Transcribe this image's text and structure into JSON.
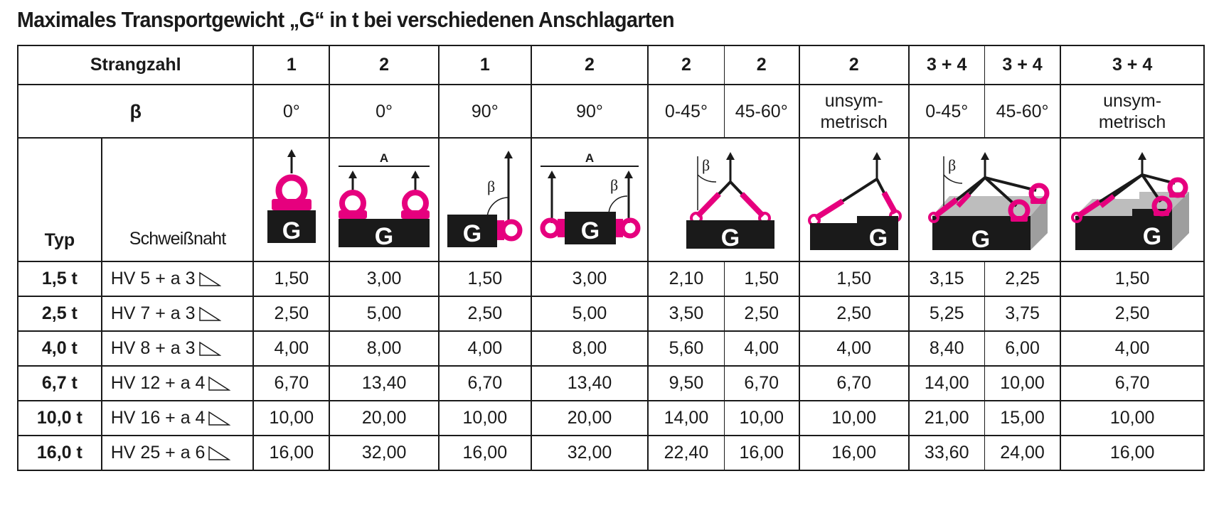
{
  "title": "Maximales Transportgewicht „G“ in t bei verschiedenen Anschlagarten",
  "labels": {
    "strangzahl": "Strangzahl",
    "beta": "β",
    "typ": "Typ",
    "schweissnaht": "Schweißnaht"
  },
  "illustration_text": {
    "load": "G",
    "distance": "A",
    "angle": "β"
  },
  "strangzahl": [
    "1",
    "2",
    "1",
    "2",
    "2",
    "2",
    "2",
    "3 + 4",
    "3 + 4",
    "3 + 4"
  ],
  "beta": [
    "0°",
    "0°",
    "90°",
    "90°",
    "0-45°",
    "45-60°",
    "unsym-\nmetrisch",
    "0-45°",
    "45-60°",
    "unsym-\nmetrisch"
  ],
  "rows": [
    {
      "typ": "1,5 t",
      "weld": "HV 5 + a 3",
      "values": [
        "1,50",
        "3,00",
        "1,50",
        "3,00",
        "2,10",
        "1,50",
        "1,50",
        "3,15",
        "2,25",
        "1,50"
      ]
    },
    {
      "typ": "2,5 t",
      "weld": "HV 7 + a 3",
      "values": [
        "2,50",
        "5,00",
        "2,50",
        "5,00",
        "3,50",
        "2,50",
        "2,50",
        "5,25",
        "3,75",
        "2,50"
      ]
    },
    {
      "typ": "4,0 t",
      "weld": "HV 8 + a 3",
      "values": [
        "4,00",
        "8,00",
        "4,00",
        "8,00",
        "5,60",
        "4,00",
        "4,00",
        "8,40",
        "6,00",
        "4,00"
      ]
    },
    {
      "typ": "6,7 t",
      "weld": "HV 12 + a 4",
      "values": [
        "6,70",
        "13,40",
        "6,70",
        "13,40",
        "9,50",
        "6,70",
        "6,70",
        "14,00",
        "10,00",
        "6,70"
      ]
    },
    {
      "typ": "10,0 t",
      "weld": "HV 16 + a 4",
      "values": [
        "10,00",
        "20,00",
        "10,00",
        "20,00",
        "14,00",
        "10,00",
        "10,00",
        "21,00",
        "15,00",
        "10,00"
      ]
    },
    {
      "typ": "16,0 t",
      "weld": "HV 25 + a 6",
      "values": [
        "16,00",
        "32,00",
        "16,00",
        "32,00",
        "22,40",
        "16,00",
        "16,00",
        "33,60",
        "24,00",
        "16,00"
      ]
    }
  ],
  "colors": {
    "ring": "#e6007e",
    "load": "#1a1a1a",
    "line": "#1a1a1a",
    "box_side": "#bdbdbd"
  }
}
